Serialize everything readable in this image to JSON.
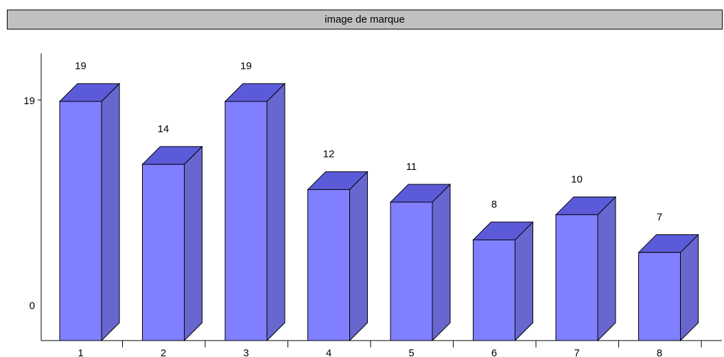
{
  "chart_data": {
    "type": "bar",
    "title": "image de marque",
    "categories": [
      "1",
      "2",
      "3",
      "4",
      "5",
      "6",
      "7",
      "8"
    ],
    "values": [
      19,
      14,
      19,
      12,
      11,
      8,
      10,
      7
    ],
    "y_ticks": [
      "0",
      "19"
    ],
    "ylim": [
      0,
      19
    ],
    "style": "3d-bars",
    "grid": false,
    "legend": "none",
    "colors": {
      "bar_front": "#7f7fff",
      "bar_top": "#5b5bd9",
      "bar_side": "#6767cf",
      "title_background": "#c0c0c0",
      "outline": "#000000"
    }
  }
}
